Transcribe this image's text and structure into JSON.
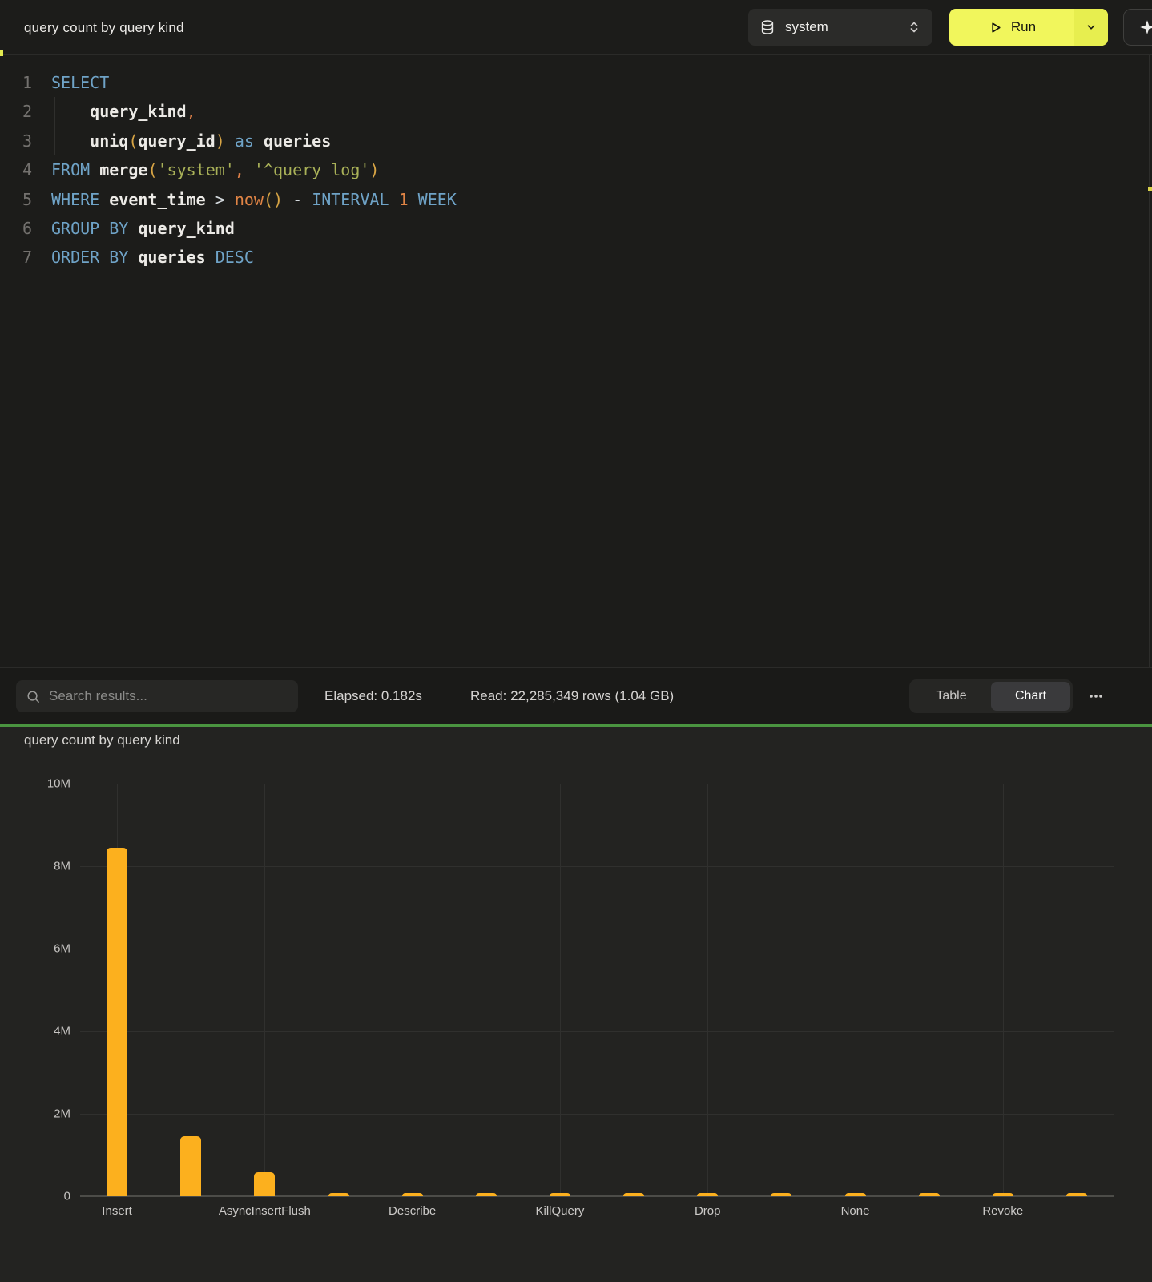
{
  "topbar": {
    "title": "query count by query kind",
    "database_selector": {
      "value": "system"
    },
    "run_button": {
      "label": "Run"
    }
  },
  "editor": {
    "lines": [
      {
        "num": "1",
        "tokens": [
          {
            "t": "SELECT",
            "c": "keyword"
          }
        ]
      },
      {
        "num": "2",
        "tokens": [
          {
            "t": "    ",
            "c": "plain"
          },
          {
            "t": "query_kind",
            "c": "identifier"
          },
          {
            "t": ",",
            "c": "comma"
          }
        ]
      },
      {
        "num": "3",
        "tokens": [
          {
            "t": "    ",
            "c": "plain"
          },
          {
            "t": "uniq",
            "c": "identifier"
          },
          {
            "t": "(",
            "c": "paren"
          },
          {
            "t": "query_id",
            "c": "identifier"
          },
          {
            "t": ")",
            "c": "paren"
          },
          {
            "t": " ",
            "c": "plain"
          },
          {
            "t": "as",
            "c": "keyword"
          },
          {
            "t": " ",
            "c": "plain"
          },
          {
            "t": "queries",
            "c": "identifier"
          }
        ]
      },
      {
        "num": "4",
        "tokens": [
          {
            "t": "FROM",
            "c": "keyword"
          },
          {
            "t": " ",
            "c": "plain"
          },
          {
            "t": "merge",
            "c": "identifier"
          },
          {
            "t": "(",
            "c": "paren"
          },
          {
            "t": "'system'",
            "c": "string"
          },
          {
            "t": ",",
            "c": "comma"
          },
          {
            "t": " ",
            "c": "plain"
          },
          {
            "t": "'^query_log'",
            "c": "string"
          },
          {
            "t": ")",
            "c": "paren"
          }
        ]
      },
      {
        "num": "5",
        "tokens": [
          {
            "t": "WHERE",
            "c": "keyword"
          },
          {
            "t": " ",
            "c": "plain"
          },
          {
            "t": "event_time",
            "c": "identifier"
          },
          {
            "t": " ",
            "c": "plain"
          },
          {
            "t": ">",
            "c": "operator"
          },
          {
            "t": " ",
            "c": "plain"
          },
          {
            "t": "now",
            "c": "function"
          },
          {
            "t": "(",
            "c": "paren"
          },
          {
            "t": ")",
            "c": "paren"
          },
          {
            "t": " ",
            "c": "plain"
          },
          {
            "t": "-",
            "c": "operator"
          },
          {
            "t": " ",
            "c": "plain"
          },
          {
            "t": "INTERVAL",
            "c": "keyword"
          },
          {
            "t": " ",
            "c": "plain"
          },
          {
            "t": "1",
            "c": "number"
          },
          {
            "t": " ",
            "c": "plain"
          },
          {
            "t": "WEEK",
            "c": "keyword"
          }
        ]
      },
      {
        "num": "6",
        "tokens": [
          {
            "t": "GROUP BY",
            "c": "keyword"
          },
          {
            "t": " ",
            "c": "plain"
          },
          {
            "t": "query_kind",
            "c": "identifier"
          }
        ]
      },
      {
        "num": "7",
        "tokens": [
          {
            "t": "ORDER BY",
            "c": "keyword"
          },
          {
            "t": " ",
            "c": "plain"
          },
          {
            "t": "queries",
            "c": "identifier"
          },
          {
            "t": " ",
            "c": "plain"
          },
          {
            "t": "DESC",
            "c": "keyword"
          }
        ]
      }
    ]
  },
  "results_toolbar": {
    "search_placeholder": "Search results...",
    "elapsed": "Elapsed: 0.182s",
    "read": "Read: 22,285,349 rows (1.04 GB)",
    "view_toggle": {
      "options": [
        "Table",
        "Chart"
      ],
      "active": "Chart"
    }
  },
  "chart_data": {
    "type": "bar",
    "title": "query count by query kind",
    "categories": [
      "Insert",
      "",
      "AsyncInsertFlush",
      "",
      "Describe",
      "",
      "KillQuery",
      "",
      "Drop",
      "",
      "None",
      "",
      "Revoke",
      ""
    ],
    "values": [
      8450000,
      1450000,
      580000,
      80000,
      80000,
      80000,
      80000,
      80000,
      80000,
      80000,
      80000,
      80000,
      80000,
      80000
    ],
    "bar_color": "#fcb01e",
    "xlabel": "",
    "ylabel": "",
    "ylim": [
      0,
      10000000
    ],
    "yticks": [
      {
        "label": "0",
        "value": 0
      },
      {
        "label": "2M",
        "value": 2000000
      },
      {
        "label": "4M",
        "value": 4000000
      },
      {
        "label": "6M",
        "value": 6000000
      },
      {
        "label": "8M",
        "value": 8000000
      },
      {
        "label": "10M",
        "value": 10000000
      }
    ],
    "grid": true,
    "legend": false
  },
  "colors": {
    "accent_green": "#4a9440",
    "bar": "#fcb01e",
    "run_yellow": "#f1f65c"
  }
}
